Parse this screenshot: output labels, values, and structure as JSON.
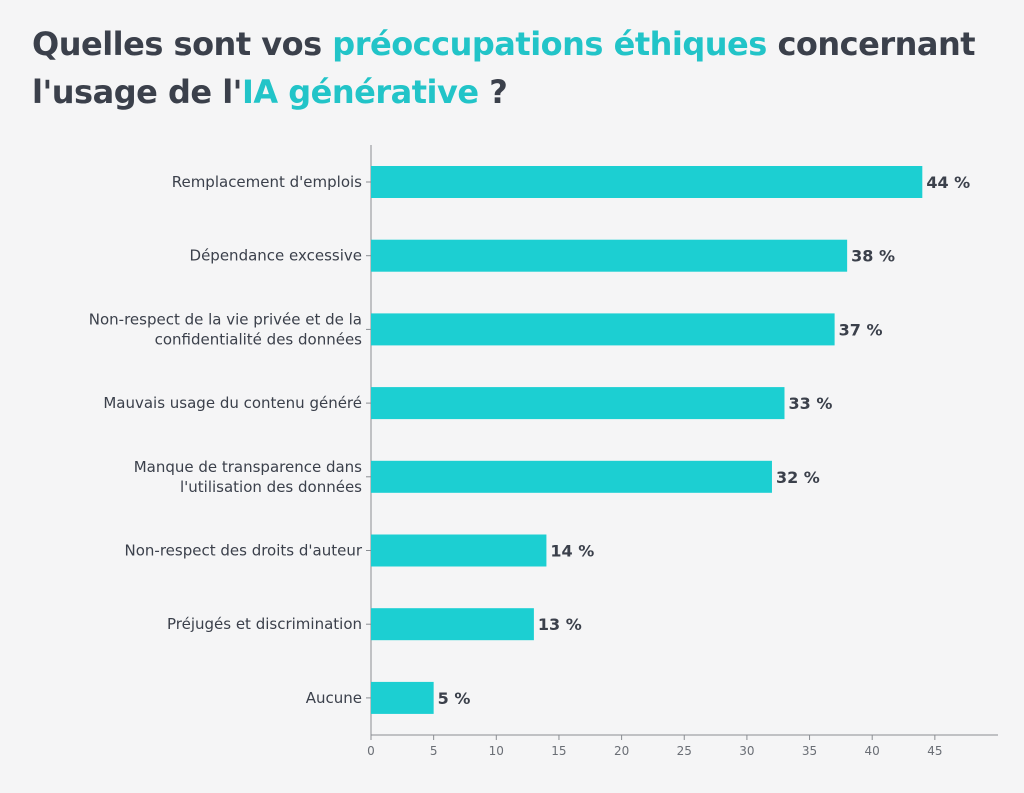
{
  "title": {
    "part1": "Quelles sont vos ",
    "highlight1": "préoccupations éthiques",
    "part2": " concernant l'usage de l'",
    "highlight2": "IA générative",
    "part3": " ?"
  },
  "colors": {
    "bar": "#1ccfd2",
    "text": "#3b404b",
    "accent": "#22c4c8",
    "axis": "#8a8d92"
  },
  "chart_data": {
    "type": "bar",
    "orientation": "horizontal",
    "title": "Quelles sont vos préoccupations éthiques concernant l'usage de l'IA générative ?",
    "categories": [
      [
        "Remplacement d'emplois"
      ],
      [
        "Dépendance excessive"
      ],
      [
        "Non-respect de la vie privée et de la",
        "confidentialité des données"
      ],
      [
        "Mauvais usage du contenu généré"
      ],
      [
        "Manque de transparence dans",
        "l'utilisation des données"
      ],
      [
        "Non-respect des droits d'auteur"
      ],
      [
        "Préjugés et discrimination"
      ],
      [
        "Aucune"
      ]
    ],
    "values": [
      44,
      38,
      37,
      33,
      32,
      14,
      13,
      5
    ],
    "value_labels": [
      "44 %",
      "38 %",
      "37 %",
      "33 %",
      "32 %",
      "14 %",
      "13 %",
      "5 %"
    ],
    "xlim": [
      0,
      50
    ],
    "xticks": [
      0,
      5,
      10,
      15,
      20,
      25,
      30,
      35,
      40,
      45
    ],
    "xlabel": "",
    "ylabel": "",
    "grid": false
  }
}
